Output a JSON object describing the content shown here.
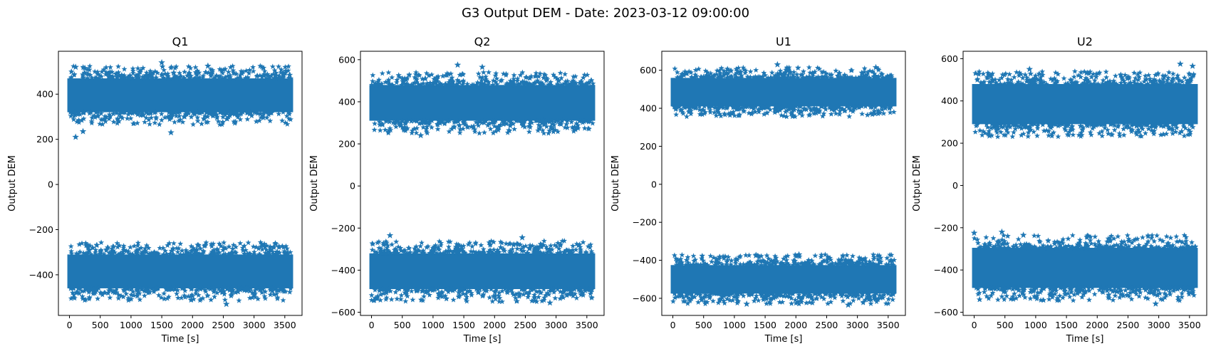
{
  "figure_title": "G3 Output DEM - Date: 2023-03-12 09:00:00",
  "colors": {
    "series": "#1f77b4",
    "axes": "#000000",
    "background": "#ffffff"
  },
  "chart_data": [
    {
      "type": "scatter",
      "marker": "star",
      "title": "Q1",
      "xlabel": "Time [s]",
      "ylabel": "Output DEM",
      "xlim": [
        -180,
        3780
      ],
      "ylim": [
        -580,
        590
      ],
      "xticks": [
        0,
        500,
        1000,
        1500,
        2000,
        2500,
        3000,
        3500
      ],
      "yticks": [
        -400,
        -200,
        0,
        200,
        400
      ],
      "grid": false,
      "x_range": [
        0,
        3600
      ],
      "bands": [
        {
          "center": 395,
          "half_width": 75,
          "halo": 55
        },
        {
          "center": -385,
          "half_width": 75,
          "halo": 55
        }
      ],
      "outliers": [
        {
          "x": 100,
          "y": 210
        },
        {
          "x": 220,
          "y": 235
        },
        {
          "x": 1650,
          "y": 230
        },
        {
          "x": 1500,
          "y": 540
        },
        {
          "x": 100,
          "y": 520
        },
        {
          "x": 250,
          "y": 515
        },
        {
          "x": 2250,
          "y": 525
        },
        {
          "x": 2550,
          "y": -530
        },
        {
          "x": 3350,
          "y": -265
        }
      ]
    },
    {
      "type": "scatter",
      "marker": "star",
      "title": "Q2",
      "xlabel": "Time [s]",
      "ylabel": "Output DEM",
      "xlim": [
        -180,
        3780
      ],
      "ylim": [
        -615,
        640
      ],
      "xticks": [
        0,
        500,
        1000,
        1500,
        2000,
        2500,
        3000,
        3500
      ],
      "yticks": [
        -600,
        -400,
        -200,
        0,
        200,
        400,
        600
      ],
      "grid": false,
      "x_range": [
        0,
        3600
      ],
      "bands": [
        {
          "center": 395,
          "half_width": 85,
          "halo": 60
        },
        {
          "center": -405,
          "half_width": 85,
          "halo": 60
        }
      ],
      "outliers": [
        {
          "x": 1400,
          "y": 575
        },
        {
          "x": 1800,
          "y": 565
        },
        {
          "x": 800,
          "y": 240
        },
        {
          "x": 300,
          "y": -235
        },
        {
          "x": 2450,
          "y": -245
        },
        {
          "x": 2900,
          "y": -555
        }
      ]
    },
    {
      "type": "scatter",
      "marker": "star",
      "title": "U1",
      "xlabel": "Time [s]",
      "ylabel": "Output DEM",
      "xlim": [
        -180,
        3780
      ],
      "ylim": [
        -690,
        700
      ],
      "xticks": [
        0,
        500,
        1000,
        1500,
        2000,
        2500,
        3000,
        3500
      ],
      "yticks": [
        -600,
        -400,
        -200,
        0,
        200,
        400,
        600
      ],
      "grid": false,
      "x_range": [
        0,
        3600
      ],
      "bands": [
        {
          "center": 485,
          "half_width": 75,
          "halo": 55
        },
        {
          "center": -500,
          "half_width": 75,
          "halo": 55
        }
      ],
      "outliers": [
        {
          "x": 1700,
          "y": 630
        },
        {
          "x": 3300,
          "y": 615
        },
        {
          "x": 2050,
          "y": -370
        },
        {
          "x": 1350,
          "y": -375
        },
        {
          "x": 1200,
          "y": -630
        },
        {
          "x": 2850,
          "y": -635
        }
      ]
    },
    {
      "type": "scatter",
      "marker": "star",
      "title": "U2",
      "xlabel": "Time [s]",
      "ylabel": "Output DEM",
      "xlim": [
        -180,
        3780
      ],
      "ylim": [
        -615,
        635
      ],
      "xticks": [
        0,
        500,
        1000,
        1500,
        2000,
        2500,
        3000,
        3500
      ],
      "yticks": [
        -600,
        -400,
        -200,
        0,
        200,
        400,
        600
      ],
      "grid": false,
      "x_range": [
        0,
        3600
      ],
      "bands": [
        {
          "center": 385,
          "half_width": 95,
          "halo": 60
        },
        {
          "center": -390,
          "half_width": 95,
          "halo": 60
        }
      ],
      "outliers": [
        {
          "x": 900,
          "y": 550
        },
        {
          "x": 3350,
          "y": 575
        },
        {
          "x": 3550,
          "y": 565
        },
        {
          "x": 0,
          "y": -225
        },
        {
          "x": 450,
          "y": -220
        },
        {
          "x": 800,
          "y": -235
        },
        {
          "x": 250,
          "y": 235
        },
        {
          "x": 2950,
          "y": -560
        }
      ]
    }
  ]
}
